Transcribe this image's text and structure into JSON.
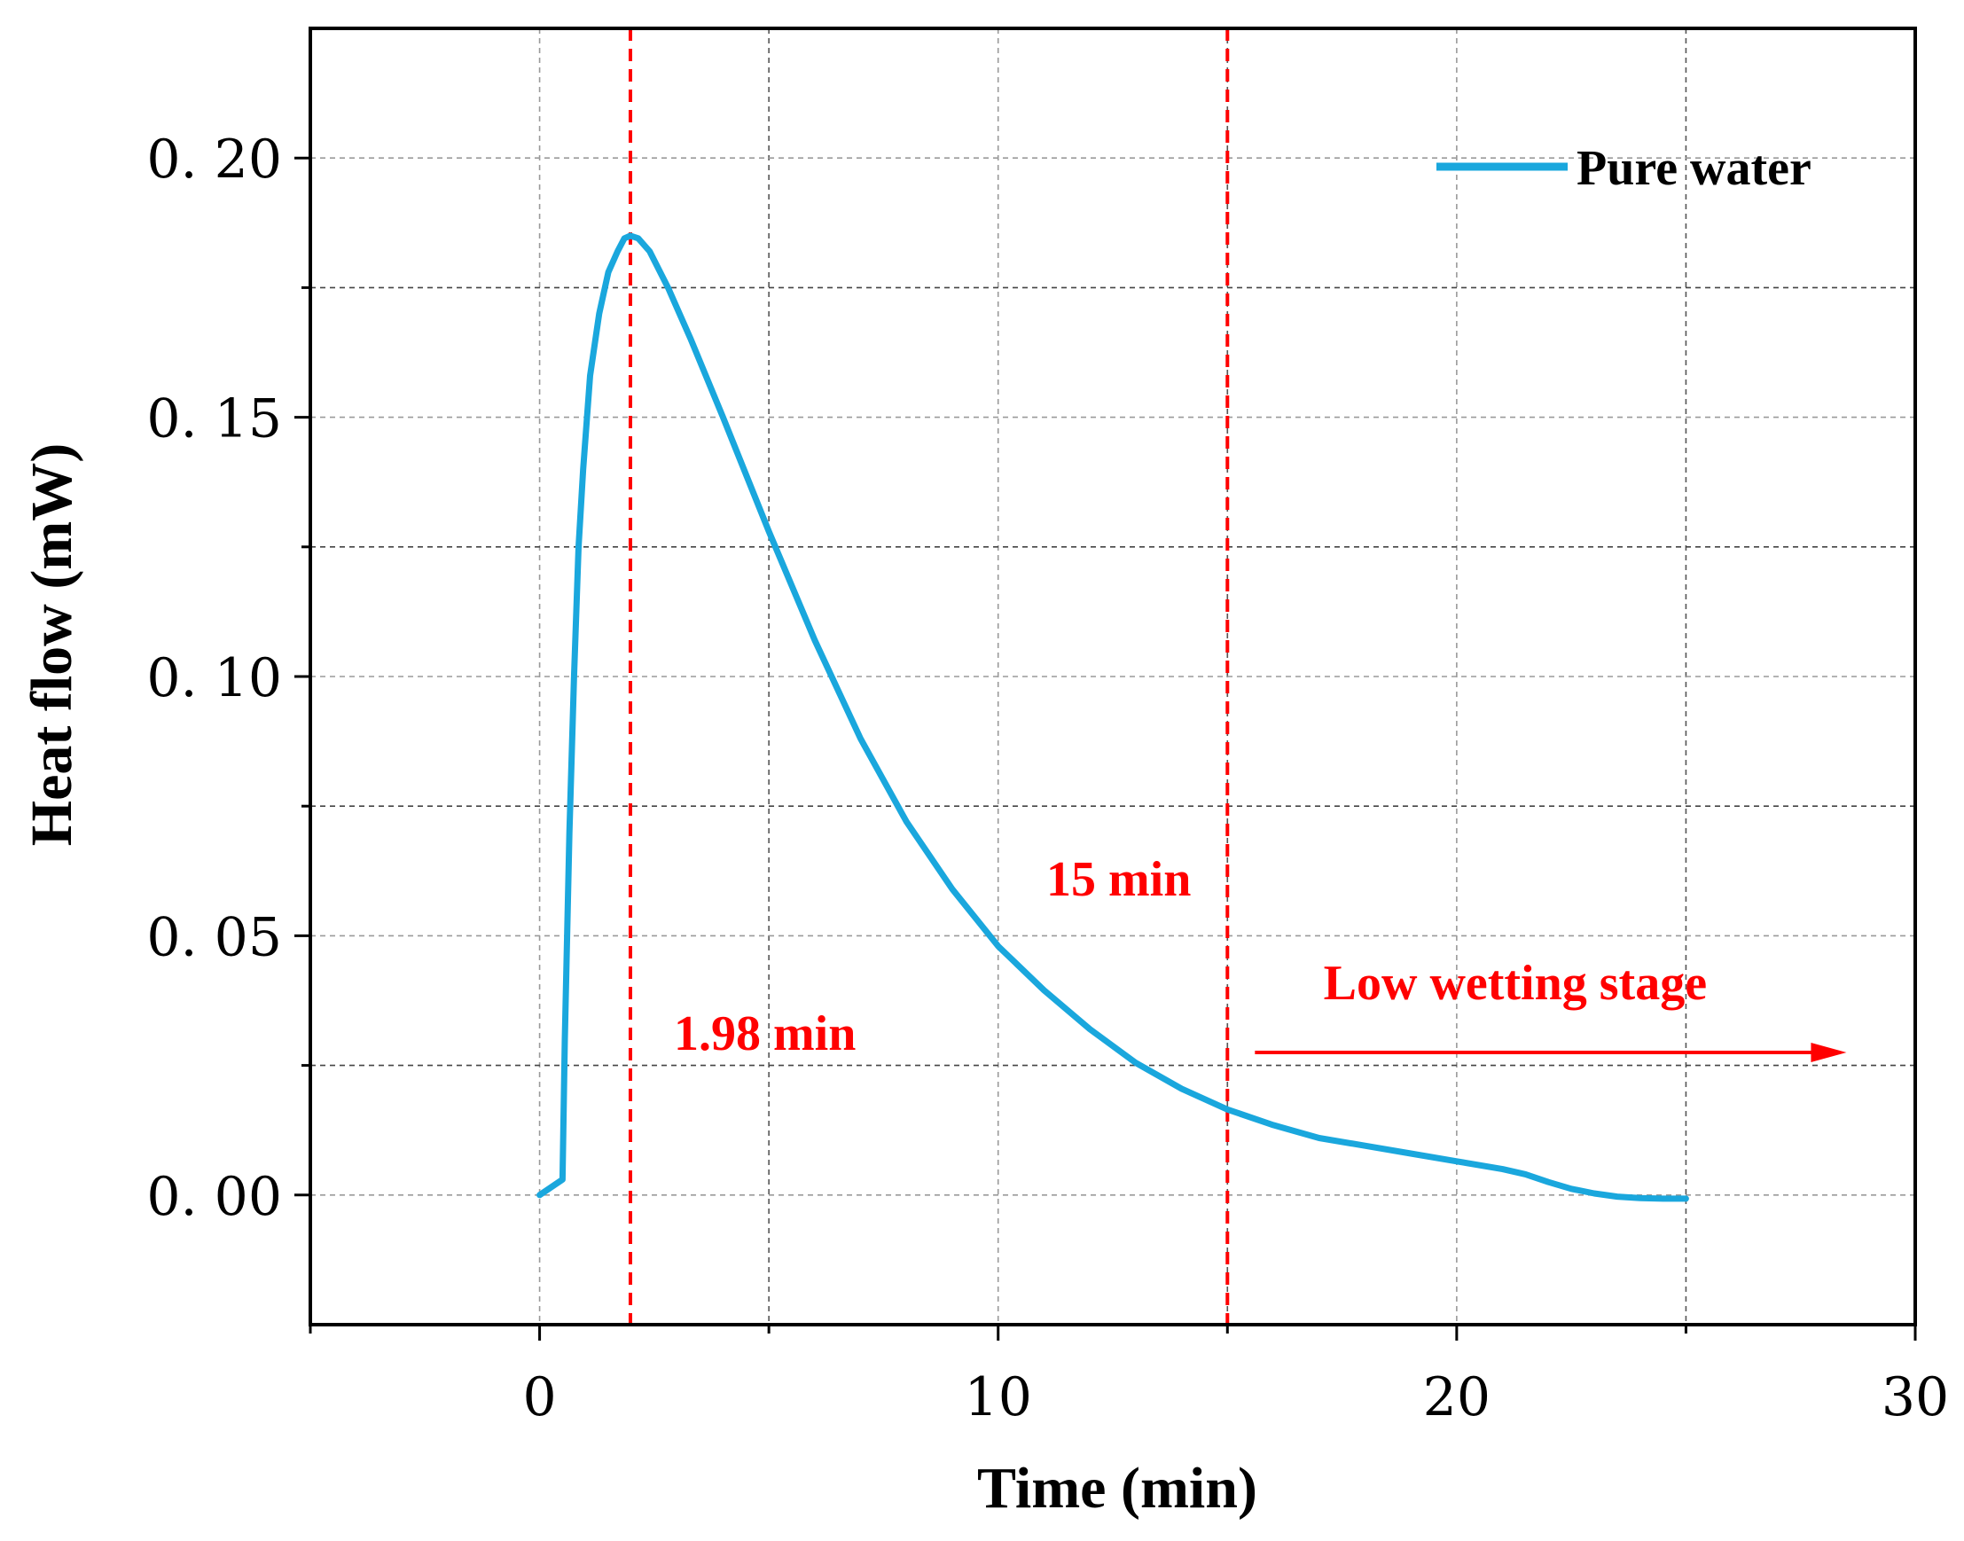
{
  "chart_data": {
    "type": "line",
    "title": "",
    "xlabel": "Time (min)",
    "ylabel": "Heat flow (mW)",
    "xlim": [
      -5,
      30
    ],
    "ylim": [
      -0.025,
      0.225
    ],
    "x_ticks": [
      0,
      10,
      20,
      30
    ],
    "x_tick_labels": [
      "0",
      "10",
      "20",
      "30"
    ],
    "y_ticks": [
      0.0,
      0.05,
      0.1,
      0.15,
      0.2
    ],
    "y_tick_labels": [
      "0. 00",
      "0. 05",
      "0. 10",
      "0. 15",
      "0. 20"
    ],
    "grid": true,
    "legend_position": "top-right",
    "series": [
      {
        "name": "Pure water",
        "color": "#1aa7dd",
        "x": [
          0,
          0.5,
          0.55,
          0.65,
          0.75,
          0.85,
          0.95,
          1.1,
          1.3,
          1.5,
          1.7,
          1.85,
          1.98,
          2.15,
          2.4,
          2.8,
          3.3,
          4.0,
          5.0,
          6.0,
          7.0,
          8.0,
          9.0,
          10.0,
          11.0,
          12.0,
          13.0,
          14.0,
          15.0,
          16.0,
          17.0,
          18.0,
          19.0,
          20.0,
          21.0,
          21.5,
          22.0,
          22.5,
          23.0,
          23.5,
          24.0,
          24.5,
          25.0
        ],
        "y": [
          0.0,
          0.003,
          0.03,
          0.07,
          0.1,
          0.125,
          0.14,
          0.158,
          0.17,
          0.178,
          0.182,
          0.1845,
          0.185,
          0.1845,
          0.182,
          0.175,
          0.165,
          0.15,
          0.128,
          0.107,
          0.088,
          0.072,
          0.059,
          0.048,
          0.0395,
          0.032,
          0.0255,
          0.0205,
          0.0165,
          0.0135,
          0.011,
          0.0095,
          0.008,
          0.0065,
          0.005,
          0.004,
          0.0025,
          0.0012,
          0.0003,
          -0.0003,
          -0.0006,
          -0.0007,
          -0.0007
        ]
      }
    ],
    "vlines": [
      {
        "x": 1.98,
        "label": "1.98 min",
        "color": "#ff0000"
      },
      {
        "x": 15,
        "label": "15 min",
        "color": "#ff0000"
      }
    ],
    "annotations": [
      {
        "text": "Low wetting stage",
        "color": "#ff0000",
        "arrow_from_x": 15.6,
        "arrow_to_x": 28.5,
        "arrow_y": 0.0275
      }
    ]
  }
}
